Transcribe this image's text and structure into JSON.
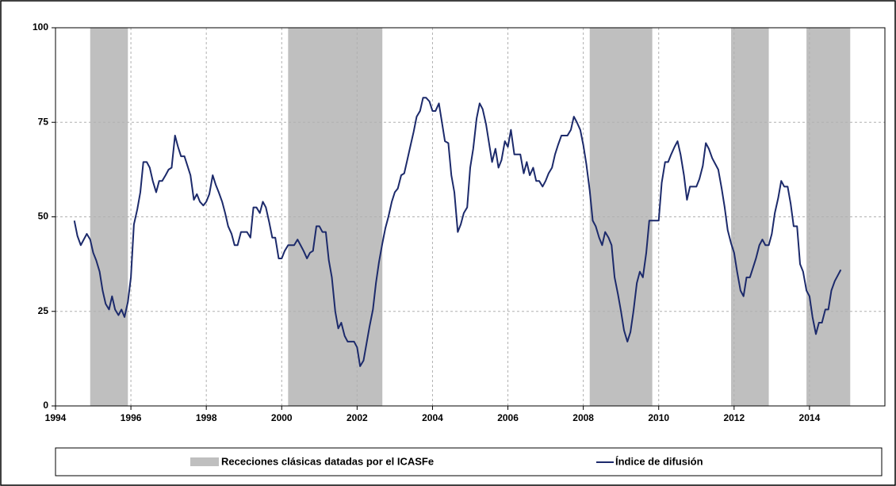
{
  "chart_data": {
    "type": "line",
    "x": [
      1994.5,
      1994.58,
      1994.67,
      1994.75,
      1994.83,
      1994.92,
      1995,
      1995.08,
      1995.17,
      1995.25,
      1995.33,
      1995.42,
      1995.5,
      1995.58,
      1995.67,
      1995.75,
      1995.83,
      1995.92,
      1996,
      1996.08,
      1996.17,
      1996.25,
      1996.33,
      1996.42,
      1996.5,
      1996.58,
      1996.67,
      1996.75,
      1996.83,
      1996.92,
      1997,
      1997.08,
      1997.17,
      1997.25,
      1997.33,
      1997.42,
      1997.5,
      1997.58,
      1997.67,
      1997.75,
      1997.83,
      1997.92,
      1998,
      1998.08,
      1998.17,
      1998.25,
      1998.33,
      1998.42,
      1998.5,
      1998.58,
      1998.67,
      1998.75,
      1998.83,
      1998.92,
      1999,
      1999.08,
      1999.17,
      1999.25,
      1999.33,
      1999.42,
      1999.5,
      1999.58,
      1999.67,
      1999.75,
      1999.83,
      1999.92,
      2000,
      2000.08,
      2000.17,
      2000.25,
      2000.33,
      2000.42,
      2000.5,
      2000.58,
      2000.67,
      2000.75,
      2000.83,
      2000.92,
      2001,
      2001.08,
      2001.17,
      2001.25,
      2001.33,
      2001.42,
      2001.5,
      2001.58,
      2001.67,
      2001.75,
      2001.83,
      2001.92,
      2002,
      2002.08,
      2002.17,
      2002.25,
      2002.33,
      2002.42,
      2002.5,
      2002.58,
      2002.67,
      2002.75,
      2002.83,
      2002.92,
      2003,
      2003.08,
      2003.17,
      2003.25,
      2003.33,
      2003.42,
      2003.5,
      2003.58,
      2003.67,
      2003.75,
      2003.83,
      2003.92,
      2004,
      2004.08,
      2004.17,
      2004.25,
      2004.33,
      2004.42,
      2004.5,
      2004.58,
      2004.67,
      2004.75,
      2004.83,
      2004.92,
      2005,
      2005.08,
      2005.17,
      2005.25,
      2005.33,
      2005.42,
      2005.5,
      2005.58,
      2005.67,
      2005.75,
      2005.83,
      2005.92,
      2006,
      2006.08,
      2006.17,
      2006.25,
      2006.33,
      2006.42,
      2006.5,
      2006.58,
      2006.67,
      2006.75,
      2006.83,
      2006.92,
      2007,
      2007.08,
      2007.17,
      2007.25,
      2007.33,
      2007.42,
      2007.5,
      2007.58,
      2007.67,
      2007.75,
      2007.83,
      2007.92,
      2008,
      2008.08,
      2008.17,
      2008.25,
      2008.33,
      2008.42,
      2008.5,
      2008.58,
      2008.67,
      2008.75,
      2008.83,
      2008.92,
      2009,
      2009.08,
      2009.17,
      2009.25,
      2009.33,
      2009.42,
      2009.5,
      2009.58,
      2009.67,
      2009.75,
      2009.83,
      2009.92,
      2010,
      2010.08,
      2010.17,
      2010.25,
      2010.33,
      2010.42,
      2010.5,
      2010.58,
      2010.67,
      2010.75,
      2010.83,
      2010.92,
      2011,
      2011.08,
      2011.17,
      2011.25,
      2011.33,
      2011.42,
      2011.5,
      2011.58,
      2011.67,
      2011.75,
      2011.83,
      2011.92,
      2012,
      2012.08,
      2012.17,
      2012.25,
      2012.33,
      2012.42,
      2012.5,
      2012.58,
      2012.67,
      2012.75,
      2012.83,
      2012.92,
      2013,
      2013.08,
      2013.17,
      2013.25,
      2013.33,
      2013.42,
      2013.5,
      2013.58,
      2013.67,
      2013.75,
      2013.83,
      2013.92,
      2014,
      2014.08,
      2014.17,
      2014.25,
      2014.33,
      2014.42,
      2014.5,
      2014.58,
      2014.67,
      2014.75,
      2014.83
    ],
    "series": [
      {
        "name": "Índice de difusión",
        "color": "#1c2a6b",
        "values": [
          49,
          45,
          42.5,
          44,
          45.5,
          44,
          40.5,
          38.5,
          35.5,
          30.5,
          27,
          25.5,
          29,
          25.5,
          24,
          25.5,
          23.5,
          27.5,
          34,
          48,
          52,
          56.5,
          64.5,
          64.5,
          63,
          59.5,
          56.5,
          59.5,
          59.5,
          61,
          62.5,
          63,
          71.5,
          68.5,
          66,
          66,
          63.5,
          61,
          54.5,
          56,
          54,
          53,
          54,
          56,
          61,
          58.5,
          56.5,
          54,
          51,
          47.5,
          45.5,
          42.5,
          42.5,
          46,
          46,
          46,
          44.5,
          52.5,
          52.5,
          51,
          54,
          52.5,
          48.5,
          44.5,
          44.5,
          39,
          39,
          41,
          42.5,
          42.5,
          42.5,
          44,
          42.5,
          41,
          39,
          40.5,
          41,
          47.5,
          47.5,
          46,
          46,
          38.5,
          34,
          25,
          20.5,
          22,
          18.5,
          17,
          17,
          17,
          15.5,
          10.5,
          12,
          16.5,
          21,
          25.5,
          32.5,
          38,
          43,
          47,
          50,
          54,
          56.5,
          57.5,
          61,
          61.5,
          65,
          69,
          72.5,
          76.5,
          78,
          81.5,
          81.5,
          80.5,
          78,
          78,
          80,
          75,
          70,
          69.5,
          61,
          56.5,
          46,
          48,
          51,
          52.5,
          63,
          68,
          76,
          80,
          78.5,
          74.5,
          69.5,
          64.5,
          68,
          63,
          65,
          70,
          68.5,
          73,
          66.5,
          66.5,
          66.5,
          61.5,
          64.5,
          61,
          63,
          59.5,
          59.5,
          58,
          59.5,
          61.5,
          63,
          66.5,
          69,
          71.5,
          71.5,
          71.5,
          73,
          76.5,
          75,
          73,
          69,
          64,
          57,
          49,
          47.5,
          44.5,
          42.5,
          46,
          44.5,
          42.5,
          34,
          29.5,
          25,
          20,
          17,
          19.5,
          25,
          32.5,
          35.5,
          34,
          40.5,
          49,
          49,
          49,
          49,
          59,
          64.5,
          64.5,
          66.5,
          68.5,
          70,
          66.5,
          61,
          54.5,
          58,
          58,
          58,
          60,
          63.5,
          69.5,
          68,
          65.5,
          64,
          62.5,
          57.5,
          52.5,
          46.5,
          43,
          40.5,
          35.5,
          30.5,
          29,
          34,
          34,
          36.5,
          39,
          42.5,
          44,
          42.5,
          42.5,
          45.5,
          51,
          55,
          59.5,
          58,
          58,
          53.5,
          47.5,
          47.5,
          37.5,
          35.5,
          30.5,
          29,
          23.5,
          19,
          22,
          22,
          25.5,
          25.5,
          30.5,
          33,
          34.5,
          36
        ]
      }
    ],
    "recessions": {
      "name": "Receciones clásicas datadas por el ICASFe",
      "color": "#bfbfbf",
      "periods": [
        [
          1994.92,
          1995.92
        ],
        [
          2000.17,
          2002.67
        ],
        [
          2008.17,
          2009.83
        ],
        [
          2011.92,
          2012.92
        ],
        [
          2013.92,
          2015.08
        ]
      ]
    },
    "xlim": [
      1994,
      2016
    ],
    "xticks": [
      1994,
      1996,
      1998,
      2000,
      2002,
      2004,
      2006,
      2008,
      2010,
      2012,
      2014
    ],
    "ylim": [
      0,
      100
    ],
    "yticks": [
      0,
      25,
      50,
      75,
      100
    ],
    "grid": true
  }
}
